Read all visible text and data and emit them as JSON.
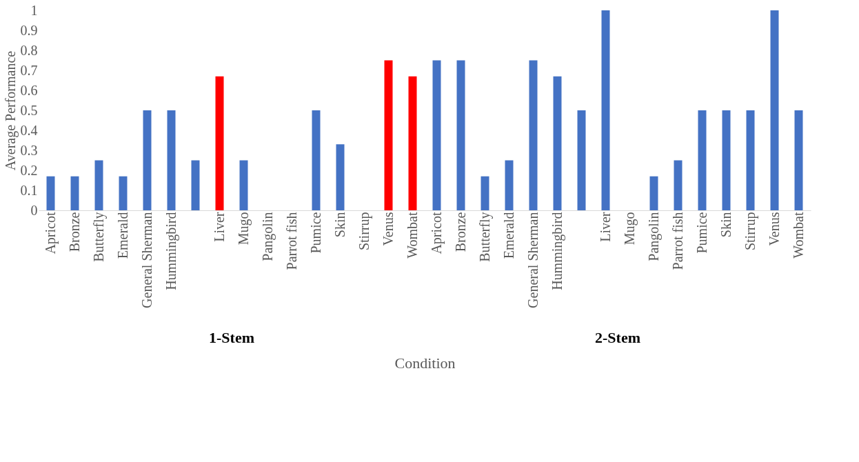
{
  "chart_data": {
    "type": "bar",
    "ylabel": "Average Performance",
    "xlabel": "Condition",
    "categories": [
      "Apricot",
      "Bronze",
      "Butterfly",
      "Emerald",
      "General Sherman",
      "Hummingbird",
      null,
      "Liver",
      "Mugo",
      "Pangolin",
      "Parrot fish",
      "Pumice",
      "Skin",
      "Stirrup",
      "Venus",
      "Wombat",
      "Apricot",
      "Bronze",
      "Butterfly",
      "Emerald",
      "General Sherman",
      "Hummingbird",
      null,
      "Liver",
      "Mugo",
      "Pangolin",
      "Parrot fish",
      "Pumice",
      "Skin",
      "Stirrup",
      "Venus",
      "Wombat"
    ],
    "values": [
      0.17,
      0.17,
      0.25,
      0.17,
      0.5,
      0.5,
      0.25,
      0.67,
      0.25,
      0,
      0,
      0.5,
      0.33,
      0,
      0.75,
      0.67,
      0.75,
      0.75,
      0.17,
      0.25,
      0.75,
      0.67,
      0.5,
      1,
      0,
      0.17,
      0.25,
      0.5,
      0.5,
      0.5,
      1,
      0.5
    ],
    "colors": [
      "#4472c4",
      "#4472c4",
      "#4472c4",
      "#4472c4",
      "#4472c4",
      "#4472c4",
      "#4472c4",
      "#ff0000",
      "#4472c4",
      "#4472c4",
      "#4472c4",
      "#4472c4",
      "#4472c4",
      "#4472c4",
      "#ff0000",
      "#ff0000",
      "#4472c4",
      "#4472c4",
      "#4472c4",
      "#4472c4",
      "#4472c4",
      "#4472c4",
      "#4472c4",
      "#4472c4",
      "#4472c4",
      "#4472c4",
      "#4472c4",
      "#4472c4",
      "#4472c4",
      "#4472c4",
      "#4472c4",
      "#4472c4"
    ],
    "ylim": [
      0,
      1
    ],
    "yticks": [
      0,
      0.1,
      0.2,
      0.3,
      0.4,
      0.5,
      0.6,
      0.7,
      0.8,
      0.9,
      1
    ],
    "grid": false,
    "annotations": [
      "1-Stem",
      "2-Stem"
    ]
  }
}
